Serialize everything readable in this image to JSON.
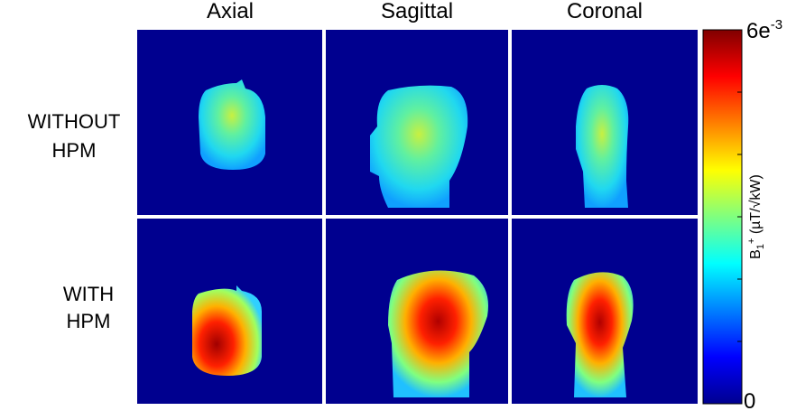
{
  "columns": [
    "Axial",
    "Sagittal",
    "Coronal"
  ],
  "rows": [
    [
      "WITHOUT",
      "HPM"
    ],
    [
      "WITH",
      "HPM"
    ]
  ],
  "colorbar": {
    "max_label": {
      "base": "6e",
      "exponent": "-3"
    },
    "min_label": "0",
    "label": {
      "symbol": "B",
      "subscript": "1",
      "superscript": "+",
      "units": " (µT/√kW)"
    }
  }
}
